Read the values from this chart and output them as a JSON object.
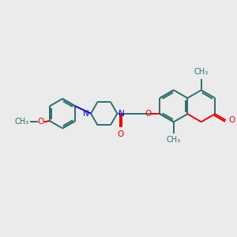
{
  "background_color": "#ebebeb",
  "bond_color": "#2d6e6e",
  "nitrogen_color": "#0000ee",
  "oxygen_color": "#ee0000",
  "line_width": 1.4,
  "font_size": 7.5,
  "fig_size": [
    3.0,
    3.0
  ],
  "dpi": 100,
  "xlim": [
    0,
    10
  ],
  "ylim": [
    0,
    10
  ]
}
